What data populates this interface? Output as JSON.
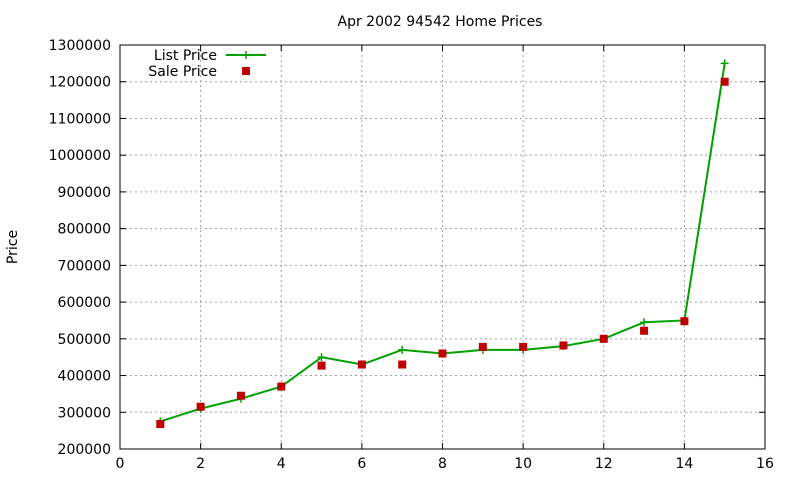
{
  "chart_data": {
    "type": "line",
    "title": "Apr 2002 94542 Home Prices",
    "xlabel": "",
    "ylabel": "Price",
    "xlim": [
      0,
      16
    ],
    "ylim": [
      200000,
      1300000
    ],
    "x_ticks": [
      0,
      2,
      4,
      6,
      8,
      10,
      12,
      14,
      16
    ],
    "y_ticks": [
      200000,
      300000,
      400000,
      500000,
      600000,
      700000,
      800000,
      900000,
      1000000,
      1100000,
      1200000,
      1300000
    ],
    "grid": true,
    "legend_position": "top-left",
    "x": [
      1,
      2,
      3,
      4,
      5,
      6,
      7,
      8,
      9,
      10,
      11,
      12,
      13,
      14,
      15
    ],
    "series": [
      {
        "name": "List Price",
        "style": "line+cross",
        "color": "#00a000",
        "values": [
          275000,
          310000,
          337000,
          370000,
          450000,
          430000,
          470000,
          460000,
          470000,
          470000,
          480000,
          500000,
          545000,
          550000,
          1250000
        ]
      },
      {
        "name": "Sale Price",
        "style": "square",
        "color": "#c00000",
        "values": [
          268000,
          315000,
          345000,
          370000,
          427000,
          430000,
          430000,
          460000,
          478000,
          478000,
          482000,
          500000,
          522000,
          548000,
          1200000
        ]
      }
    ]
  }
}
